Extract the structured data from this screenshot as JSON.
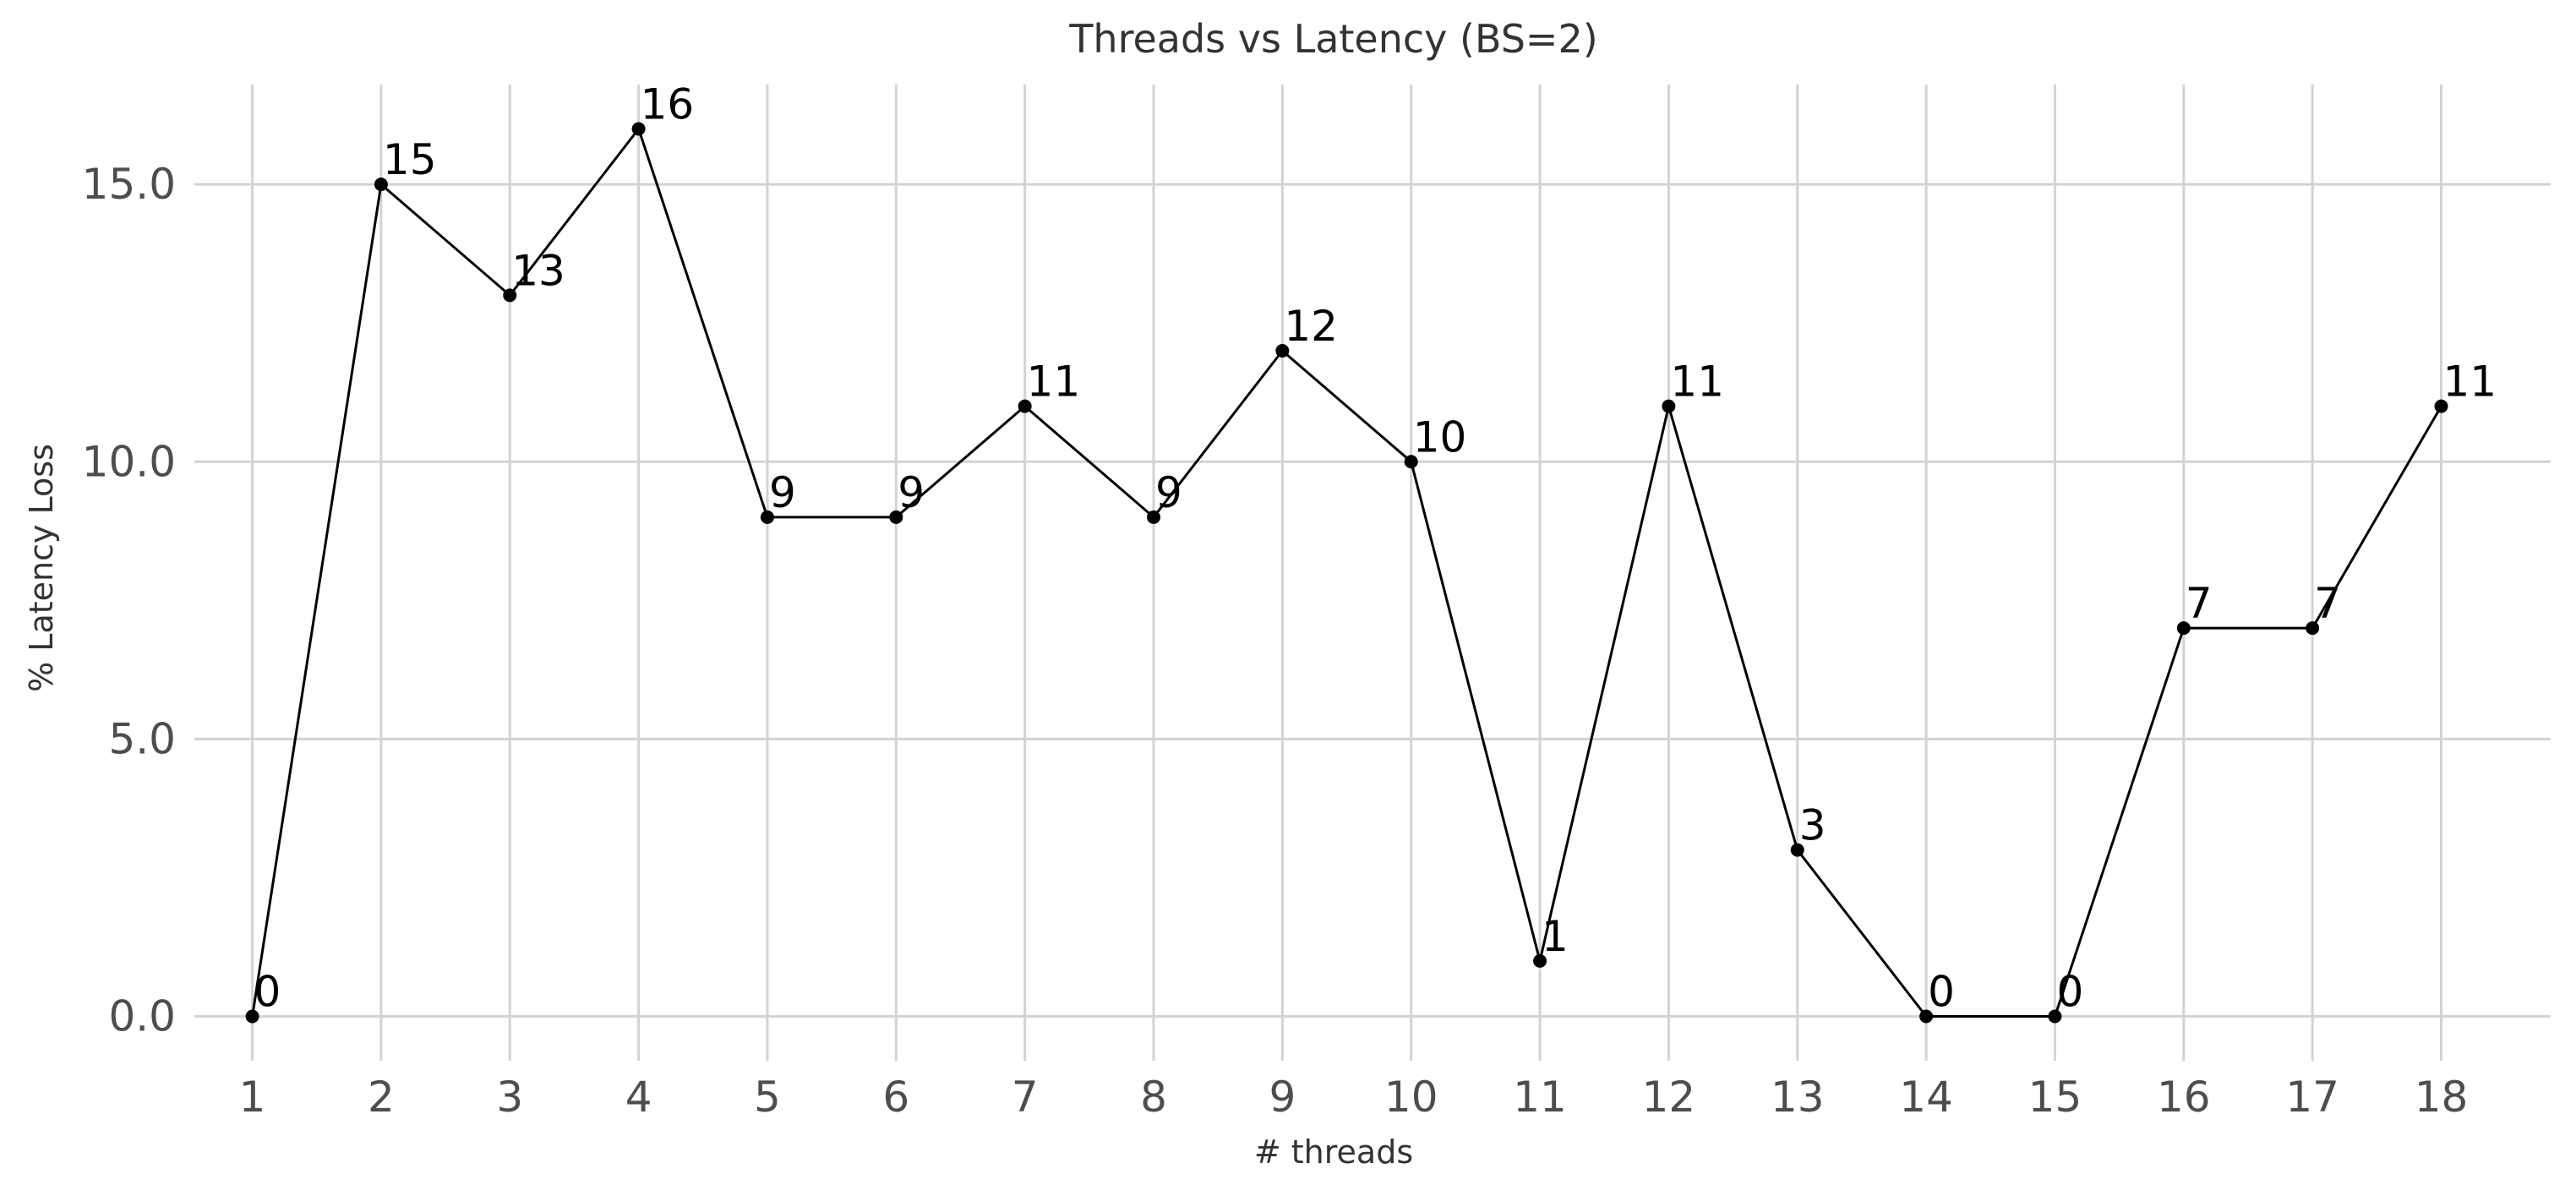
{
  "chart_data": {
    "type": "line",
    "title": "Threads vs Latency (BS=2)",
    "xlabel": "# threads",
    "ylabel": "% Latency Loss",
    "x": [
      1,
      2,
      3,
      4,
      5,
      6,
      7,
      8,
      9,
      10,
      11,
      12,
      13,
      14,
      15,
      16,
      17,
      18
    ],
    "series": [
      {
        "values": [
          0,
          15,
          13,
          16,
          9,
          9,
          11,
          9,
          12,
          10,
          1,
          11,
          3,
          0,
          0,
          7,
          7,
          11
        ]
      }
    ],
    "data_labels": [
      "0",
      "15",
      "13",
      "16",
      "9",
      "9",
      "11",
      "9",
      "12",
      "10",
      "1",
      "11",
      "3",
      "0",
      "0",
      "7",
      "7",
      "11"
    ],
    "xticks": [
      "1",
      "2",
      "3",
      "4",
      "5",
      "6",
      "7",
      "8",
      "9",
      "10",
      "11",
      "12",
      "13",
      "14",
      "15",
      "16",
      "17",
      "18"
    ],
    "yticks": [
      0,
      5,
      10,
      15
    ],
    "ytick_labels": [
      "0.0",
      "5.0",
      "10.0",
      "15.0"
    ],
    "xlim": [
      0.55,
      18.85
    ],
    "ylim": [
      -0.8,
      16.8
    ],
    "grid": true,
    "legend": "none",
    "colors": {
      "line": "#000000",
      "grid": "#d3d3d3",
      "text": "#333333"
    }
  }
}
